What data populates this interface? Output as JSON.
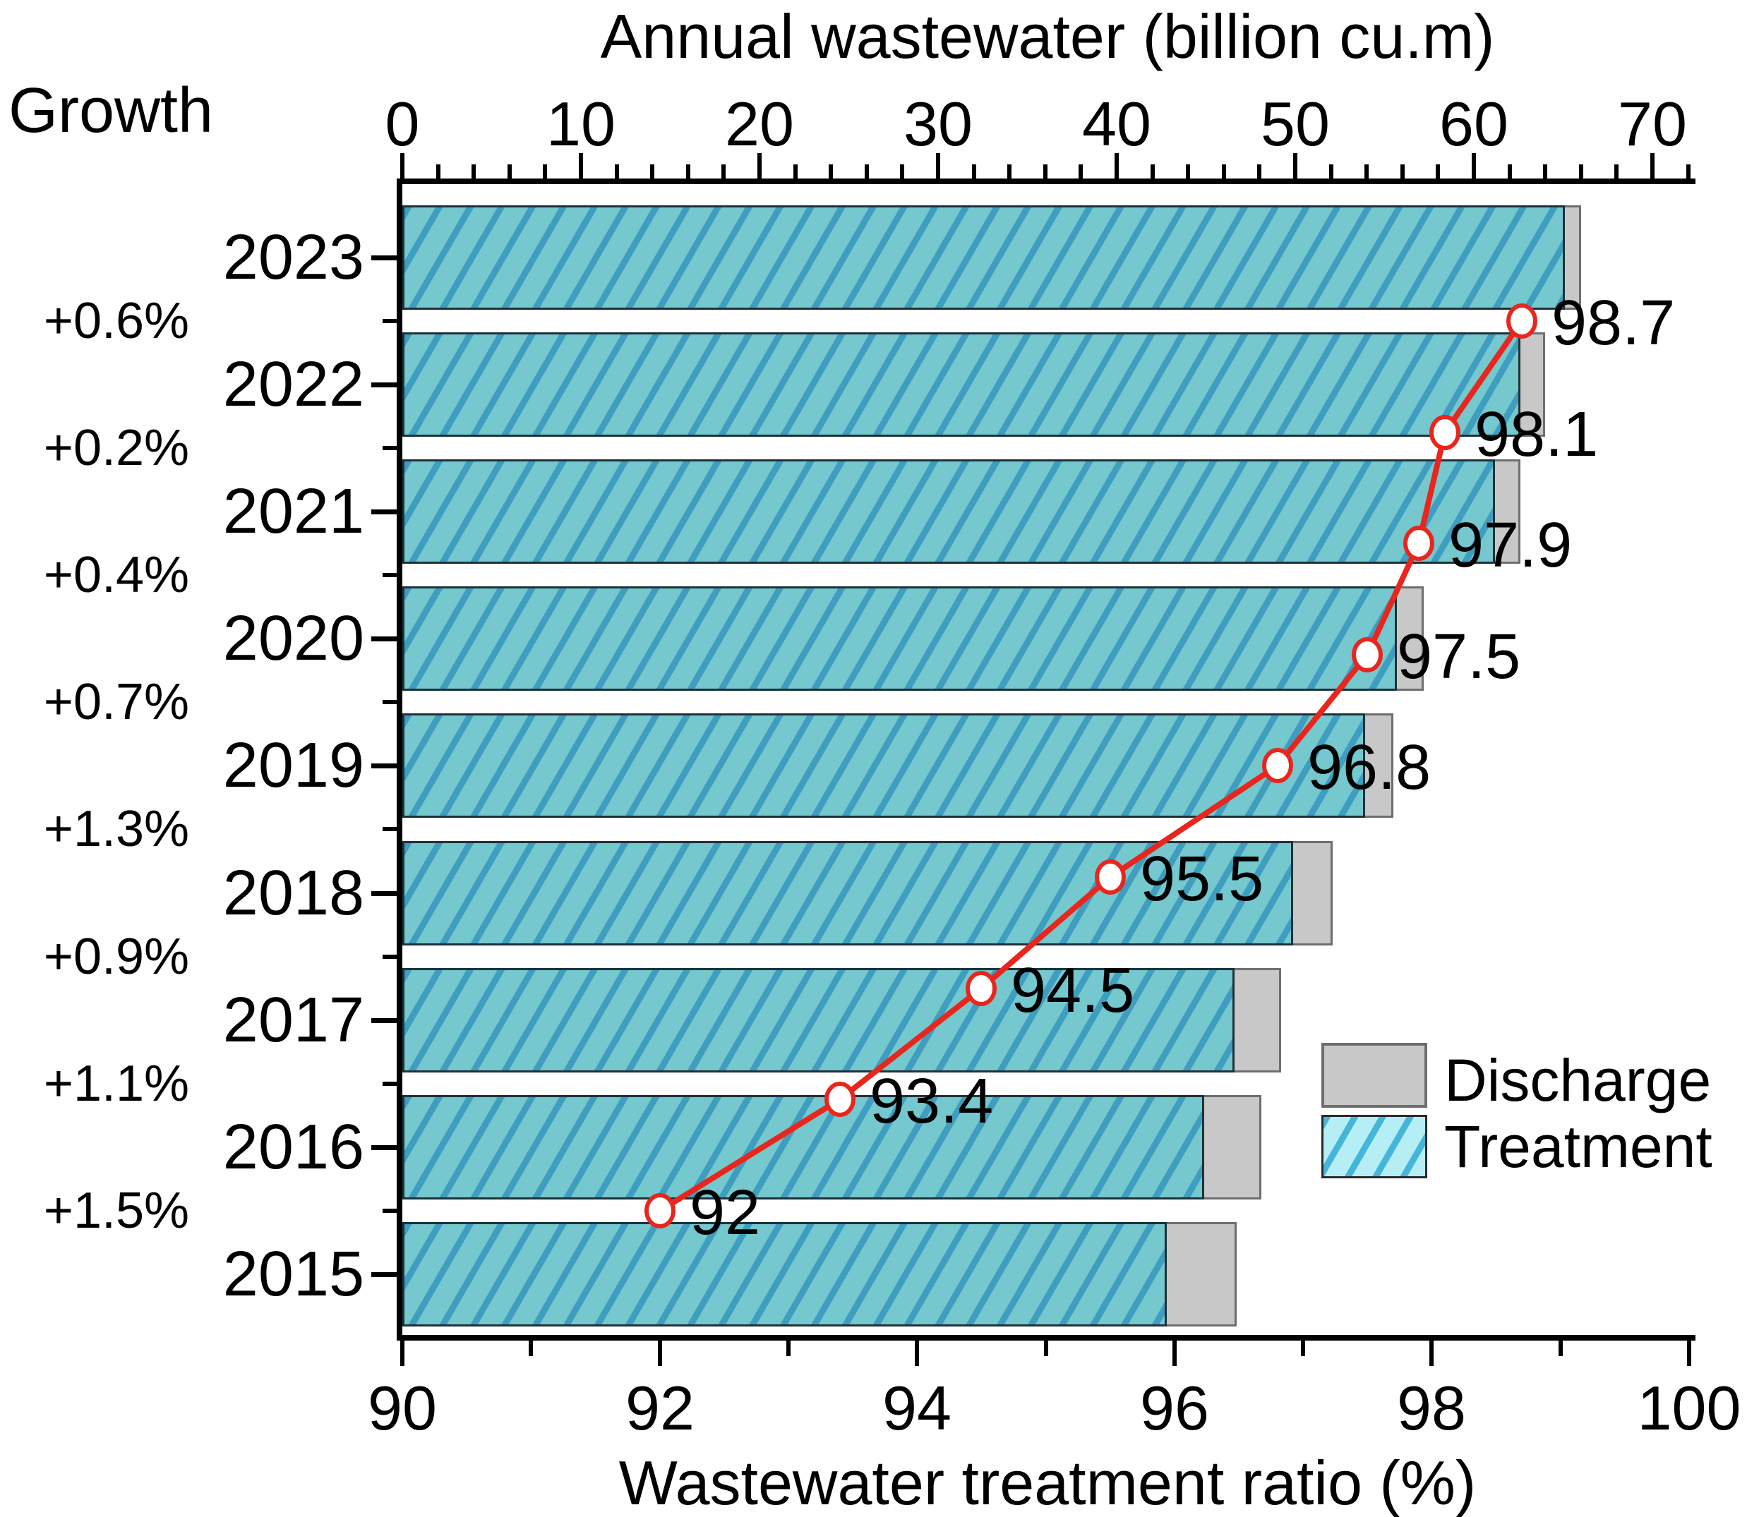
{
  "chart_data": {
    "type": "bar",
    "subtype": "horizontal-bars-with-line-overlay",
    "top_axis": {
      "title": "Annual wastewater (billion cu.m)",
      "min": 0,
      "max": 70,
      "major_tick_step": 10,
      "minor_tick_step": 2,
      "tick_labels": [
        "0",
        "10",
        "20",
        "30",
        "40",
        "50",
        "60",
        "70"
      ]
    },
    "bottom_axis": {
      "title": "Wastewater treatment ratio (%)",
      "min": 90,
      "max": 100,
      "major_tick_step": 2,
      "minor_tick_step": 1,
      "tick_labels": [
        "90",
        "92",
        "94",
        "96",
        "98",
        "100"
      ]
    },
    "categories": [
      "2023",
      "2022",
      "2021",
      "2020",
      "2019",
      "2018",
      "2017",
      "2016",
      "2015"
    ],
    "series": [
      {
        "name": "Discharge",
        "axis": "top",
        "unit": "billion cu.m",
        "values": [
          66.0,
          64.0,
          62.6,
          57.2,
          55.5,
          52.1,
          49.2,
          48.1,
          46.7
        ]
      },
      {
        "name": "Treatment",
        "axis": "top",
        "unit": "billion cu.m",
        "values": [
          65.1,
          62.6,
          61.2,
          55.7,
          53.9,
          49.9,
          46.6,
          44.9,
          42.8
        ]
      },
      {
        "name": "Treatment ratio",
        "axis": "bottom",
        "unit": "%",
        "values": [
          98.7,
          98.1,
          97.9,
          97.5,
          96.8,
          95.5,
          94.5,
          93.4,
          92
        ],
        "point_labels": [
          "98.7",
          "98.1",
          "97.9",
          "97.5",
          "96.8",
          "95.5",
          "94.5",
          "93.4",
          "92"
        ]
      }
    ],
    "growth": {
      "header": "Growth",
      "labels": [
        "+0.6%",
        "+0.2%",
        "+0.4%",
        "+0.7%",
        "+1.3%",
        "+0.9%",
        "+1.1%",
        "+1.5%"
      ]
    },
    "legend": {
      "position": "bottom-right",
      "items": [
        {
          "label": "Discharge"
        },
        {
          "label": "Treatment"
        }
      ]
    },
    "grid": false,
    "colors": {
      "treatment_fill": "#74c8ce",
      "treatment_hatch": "#3f9dbf",
      "treatment_border": "#1e3138",
      "discharge_fill": "#c8c8c8",
      "discharge_border": "#6e6e6e",
      "legend_treatment_fill": "#b5eef5",
      "legend_treatment_hatch": "#45b5da",
      "ratio_line": "#e8261d",
      "marker_fill": "#ffffff",
      "text": "#000000",
      "axis": "#000000"
    }
  }
}
